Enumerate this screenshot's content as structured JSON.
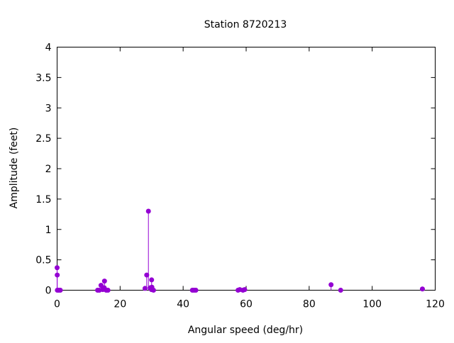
{
  "chart_data": {
    "type": "scatter",
    "style": "impulses-with-points",
    "title": "Station 8720213",
    "xlabel": "Angular speed (deg/hr)",
    "ylabel": "Amplitude (feet)",
    "xlim": [
      0,
      120
    ],
    "ylim": [
      0,
      4
    ],
    "xticks": [
      0,
      20,
      40,
      60,
      80,
      100,
      120
    ],
    "yticks": [
      0,
      0.5,
      1,
      1.5,
      2,
      2.5,
      3,
      3.5,
      4
    ],
    "ytick_labels": [
      "0",
      "0.5",
      "1",
      "1.5",
      "2",
      "2.5",
      "3",
      "3.5",
      "4"
    ],
    "grid": false,
    "color": "#9400d3",
    "points": [
      {
        "x": 0.0,
        "y": 0.37
      },
      {
        "x": 0.04,
        "y": 0.25
      },
      {
        "x": 0.08,
        "y": 0.0
      },
      {
        "x": 0.54,
        "y": 0.0
      },
      {
        "x": 1.02,
        "y": 0.0
      },
      {
        "x": 12.85,
        "y": 0.0
      },
      {
        "x": 13.4,
        "y": 0.0
      },
      {
        "x": 13.94,
        "y": 0.08
      },
      {
        "x": 14.5,
        "y": 0.01
      },
      {
        "x": 14.96,
        "y": 0.04
      },
      {
        "x": 15.04,
        "y": 0.15
      },
      {
        "x": 15.59,
        "y": 0.0
      },
      {
        "x": 16.14,
        "y": 0.0
      },
      {
        "x": 27.9,
        "y": 0.03
      },
      {
        "x": 28.44,
        "y": 0.25
      },
      {
        "x": 28.98,
        "y": 1.3
      },
      {
        "x": 29.53,
        "y": 0.04
      },
      {
        "x": 29.96,
        "y": 0.01
      },
      {
        "x": 30.0,
        "y": 0.17
      },
      {
        "x": 30.08,
        "y": 0.05
      },
      {
        "x": 30.6,
        "y": 0.0
      },
      {
        "x": 42.93,
        "y": 0.0
      },
      {
        "x": 43.48,
        "y": 0.0
      },
      {
        "x": 44.03,
        "y": 0.0
      },
      {
        "x": 57.42,
        "y": 0.0
      },
      {
        "x": 57.97,
        "y": 0.01
      },
      {
        "x": 58.98,
        "y": 0.0
      },
      {
        "x": 59.52,
        "y": 0.01
      },
      {
        "x": 86.95,
        "y": 0.09
      },
      {
        "x": 90.0,
        "y": 0.0
      },
      {
        "x": 115.94,
        "y": 0.02
      }
    ]
  }
}
